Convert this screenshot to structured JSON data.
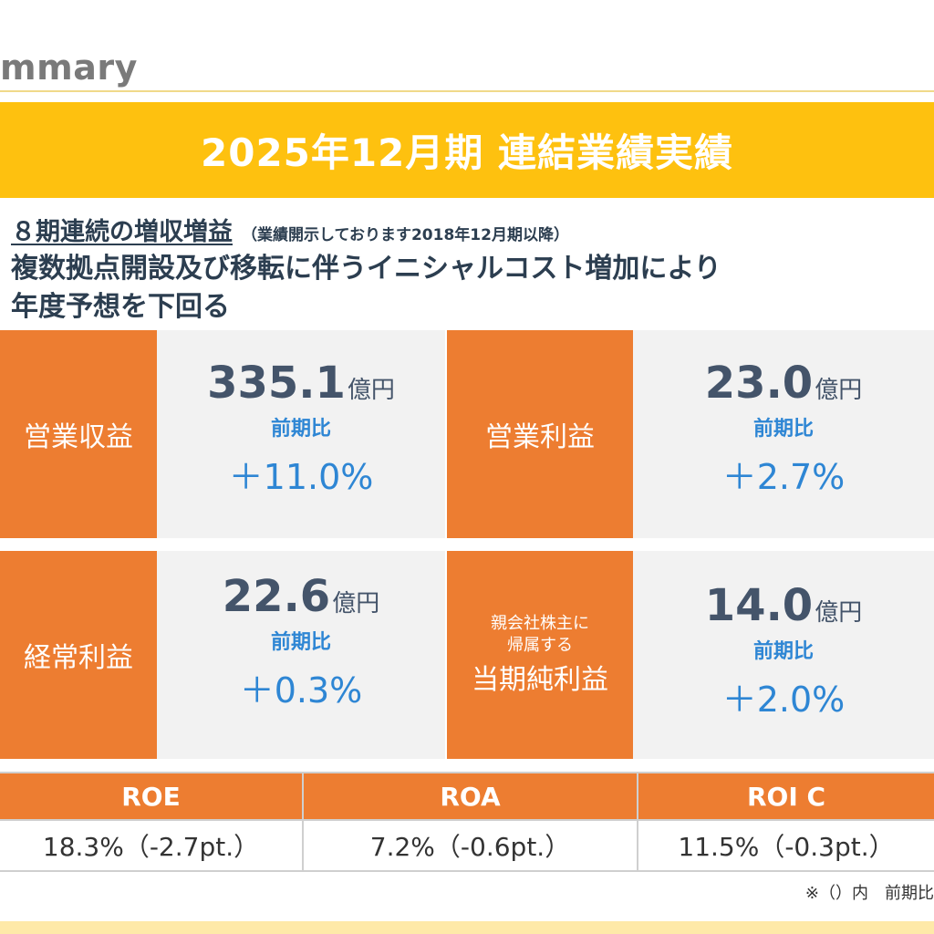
{
  "header": {
    "section_title": "mmary"
  },
  "banner": {
    "title": "2025年12月期 連結業績実績"
  },
  "headline": {
    "line1_main": "８期連続の増収増益",
    "line1_note": "（業績開示しております2018年12月期以降）",
    "line2": "複数拠点開設及び移転に伴うイニシャルコスト増加により",
    "line3": "年度予想を下回る"
  },
  "kpis": [
    {
      "label": "営業収益",
      "value": "335.1",
      "unit": "億円",
      "yoy_label": "前期比",
      "yoy": "＋11.0%"
    },
    {
      "label": "営業利益",
      "value": "23.0",
      "unit": "億円",
      "yoy_label": "前期比",
      "yoy": "＋2.7%"
    },
    {
      "label": "経常利益",
      "value": "22.6",
      "unit": "億円",
      "yoy_label": "前期比",
      "yoy": "＋0.3%"
    },
    {
      "label_sub1": "親会社株主に",
      "label_sub2": "帰属する",
      "label": "当期純利益",
      "value": "14.0",
      "unit": "億円",
      "yoy_label": "前期比",
      "yoy": "＋2.0%"
    }
  ],
  "ratios": [
    {
      "name": "ROE",
      "value": "18.3%（-2.7pt.）"
    },
    {
      "name": "ROA",
      "value": "7.2%（-0.6pt.）"
    },
    {
      "name": "ROI C",
      "value": "11.5%（-0.3pt.）"
    }
  ],
  "footnote": "※（）内　前期比",
  "colors": {
    "banner": "#fec10f",
    "label": "#ed7d31",
    "accent_blue": "#2e86d4",
    "value_text": "#44546a"
  }
}
